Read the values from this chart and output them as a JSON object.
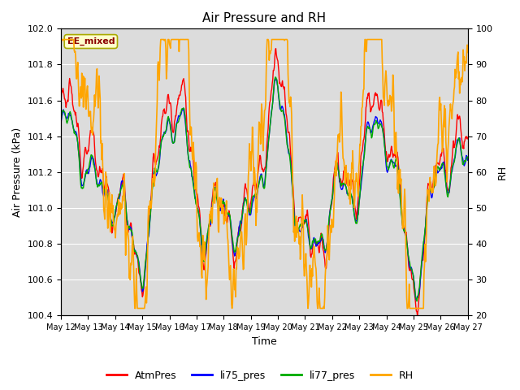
{
  "title": "Air Pressure and RH",
  "xlabel": "Time",
  "ylabel_left": "Air Pressure (kPa)",
  "ylabel_right": "RH",
  "annotation": "EE_mixed",
  "ylim_left": [
    100.4,
    102.0
  ],
  "ylim_right": [
    20,
    100
  ],
  "yticks_left": [
    100.4,
    100.6,
    100.8,
    101.0,
    101.2,
    101.4,
    101.6,
    101.8,
    102.0
  ],
  "yticks_right": [
    20,
    30,
    40,
    50,
    60,
    70,
    80,
    90,
    100
  ],
  "x_labels": [
    "May 12",
    "May 13",
    "May 14",
    "May 15",
    "May 16",
    "May 17",
    "May 18",
    "May 19",
    "May 20",
    "May 21",
    "May 22",
    "May 23",
    "May 24",
    "May 25",
    "May 26",
    "May 27"
  ],
  "colors": {
    "AtmPres": "#FF0000",
    "li75_pres": "#0000FF",
    "li77_pres": "#00AA00",
    "RH": "#FFA500"
  },
  "background_color": "#DCDCDC",
  "grid_color": "#FFFFFF",
  "annotation_bg": "#FFFFCC",
  "annotation_border": "#AAAA00",
  "legend_entries": [
    "AtmPres",
    "li75_pres",
    "li77_pres",
    "RH"
  ],
  "fig_width": 6.4,
  "fig_height": 4.8,
  "dpi": 100
}
